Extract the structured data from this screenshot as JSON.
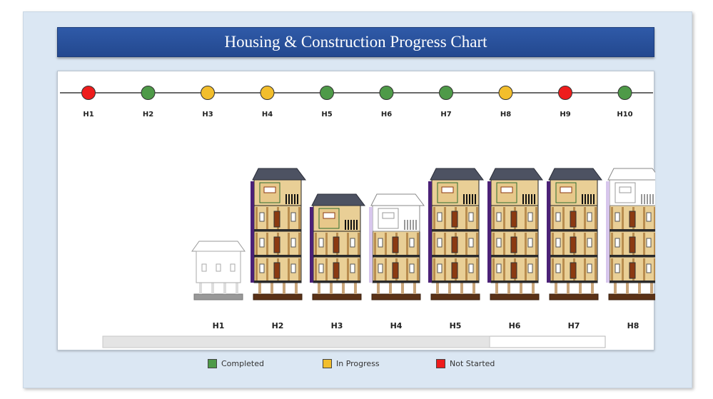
{
  "title": "Housing & Construction Progress Chart",
  "status_colors": {
    "Completed": "#4e9a48",
    "In Progress": "#f2be2c",
    "Not Started": "#ee1c1c"
  },
  "chart_data": {
    "type": "timeline",
    "milestones": [
      {
        "label": "H1",
        "status": "Not Started"
      },
      {
        "label": "H2",
        "status": "Completed"
      },
      {
        "label": "H3",
        "status": "In Progress"
      },
      {
        "label": "H4",
        "status": "In Progress"
      },
      {
        "label": "H5",
        "status": "Completed"
      },
      {
        "label": "H6",
        "status": "Completed"
      },
      {
        "label": "H7",
        "status": "Completed"
      },
      {
        "label": "H8",
        "status": "In Progress"
      },
      {
        "label": "H9",
        "status": "Not Started"
      },
      {
        "label": "H10",
        "status": "Completed"
      }
    ],
    "houses": [
      {
        "label": "H1",
        "floors": 1,
        "style": "outline"
      },
      {
        "label": "H2",
        "floors": 4,
        "style": "full"
      },
      {
        "label": "H3",
        "floors": 3,
        "style": "full"
      },
      {
        "label": "H4",
        "floors": 3,
        "style": "partial-top"
      },
      {
        "label": "H5",
        "floors": 4,
        "style": "full"
      },
      {
        "label": "H6",
        "floors": 4,
        "style": "full"
      },
      {
        "label": "H7",
        "floors": 4,
        "style": "full"
      },
      {
        "label": "H8",
        "floors": 4,
        "style": "partial-top"
      }
    ],
    "scrollbar_fraction": 0.77
  },
  "legend": [
    {
      "label": "Completed",
      "color": "#4e9a48"
    },
    {
      "label": "In Progress",
      "color": "#f2be2c"
    },
    {
      "label": "Not Started",
      "color": "#ee1c1c"
    }
  ]
}
